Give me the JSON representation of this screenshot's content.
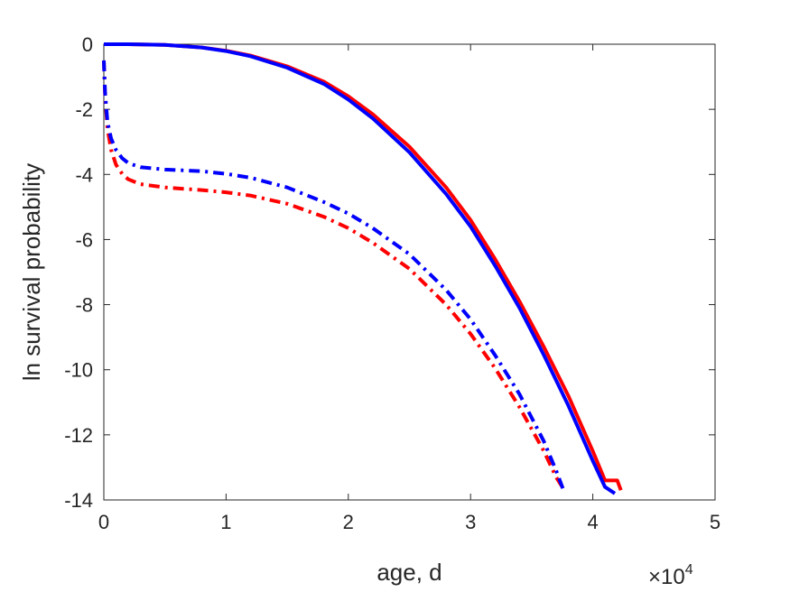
{
  "chart_data": {
    "type": "line",
    "title": "",
    "xlabel": "age, d",
    "ylabel": "ln survival probability",
    "xlim": [
      0,
      50000
    ],
    "ylim": [
      -14,
      0
    ],
    "x_ticks": [
      0,
      1,
      2,
      3,
      4,
      5
    ],
    "y_ticks": [
      0,
      -2,
      -4,
      -6,
      -8,
      -10,
      -12,
      -14
    ],
    "x_multiplier": "×10",
    "x_multiplier_exponent": "4",
    "grid": false,
    "legend": "none",
    "series": [
      {
        "color": "#ff0000",
        "style": "solid",
        "x": [
          0,
          500,
          2000,
          5000,
          8000,
          10000,
          12000,
          15000,
          18000,
          20000,
          22000,
          25000,
          28000,
          30000,
          32000,
          34000,
          36000,
          38000,
          40000,
          41000,
          41300,
          42000,
          42300
        ],
        "y": [
          0,
          0,
          0,
          -0.02,
          -0.1,
          -0.2,
          -0.35,
          -0.68,
          -1.15,
          -1.6,
          -2.15,
          -3.15,
          -4.4,
          -5.4,
          -6.6,
          -7.9,
          -9.3,
          -10.8,
          -12.5,
          -13.4,
          -13.4,
          -13.4,
          -13.7
        ]
      },
      {
        "color": "#0000ff",
        "style": "solid",
        "x": [
          0,
          500,
          2000,
          5000,
          8000,
          10000,
          12000,
          15000,
          18000,
          20000,
          22000,
          25000,
          28000,
          30000,
          32000,
          34000,
          36000,
          38000,
          40000,
          41000,
          41800
        ],
        "y": [
          0,
          0,
          0,
          -0.02,
          -0.1,
          -0.21,
          -0.37,
          -0.72,
          -1.22,
          -1.7,
          -2.28,
          -3.32,
          -4.6,
          -5.6,
          -6.8,
          -8.1,
          -9.55,
          -11.1,
          -12.8,
          -13.6,
          -13.8
        ]
      },
      {
        "color": "#ff0000",
        "style": "dash-dot",
        "x": [
          0,
          100,
          300,
          600,
          1000,
          1500,
          2000,
          3000,
          5000,
          8000,
          10000,
          12000,
          15000,
          18000,
          20000,
          22000,
          25000,
          28000,
          30000,
          32000,
          34000,
          36000,
          37000,
          37500
        ],
        "y": [
          -0.5,
          -1.6,
          -2.6,
          -3.25,
          -3.7,
          -3.98,
          -4.15,
          -4.3,
          -4.4,
          -4.48,
          -4.55,
          -4.65,
          -4.9,
          -5.3,
          -5.65,
          -6.1,
          -6.9,
          -8.0,
          -8.9,
          -9.95,
          -11.15,
          -12.5,
          -13.3,
          -13.6
        ]
      },
      {
        "color": "#0000ff",
        "style": "dash-dot",
        "x": [
          0,
          100,
          300,
          600,
          1000,
          1500,
          2000,
          3000,
          5000,
          8000,
          10000,
          12000,
          15000,
          18000,
          20000,
          22000,
          25000,
          28000,
          30000,
          32000,
          34000,
          36000,
          37000,
          37700
        ],
        "y": [
          -0.5,
          -1.5,
          -2.4,
          -2.9,
          -3.25,
          -3.5,
          -3.65,
          -3.78,
          -3.85,
          -3.9,
          -3.98,
          -4.1,
          -4.4,
          -4.85,
          -5.2,
          -5.65,
          -6.45,
          -7.55,
          -8.45,
          -9.55,
          -10.75,
          -12.2,
          -13.1,
          -13.8
        ]
      }
    ]
  }
}
